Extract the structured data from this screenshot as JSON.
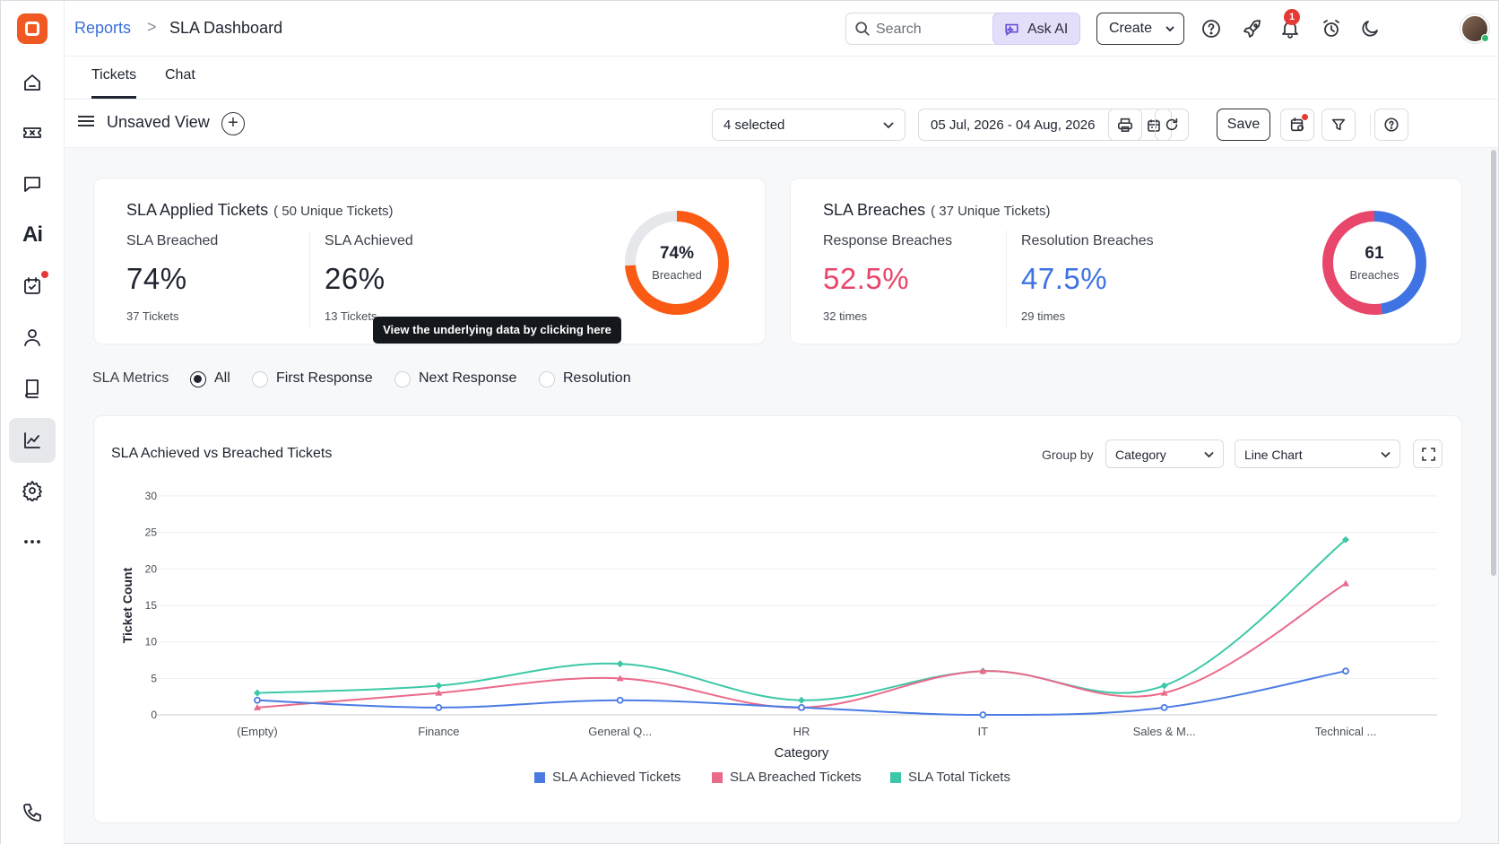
{
  "header": {
    "breadcrumb_parent": "Reports",
    "breadcrumb_sep": ">",
    "breadcrumb_current": "SLA Dashboard",
    "search_placeholder": "Search",
    "search_shortcut": "/",
    "ask_ai_label": "Ask AI",
    "create_label": "Create",
    "notification_count": "1"
  },
  "tabs": [
    {
      "label": "Tickets",
      "active": true
    },
    {
      "label": "Chat",
      "active": false
    }
  ],
  "view_bar": {
    "view_name": "Unsaved View",
    "add_symbol": "+",
    "filter_select": "4 selected",
    "date_range": "05 Jul, 2026 - 04 Aug, 2026",
    "save_label": "Save"
  },
  "sla_applied": {
    "title": "SLA Applied Tickets",
    "subtitle": "( 50 Unique Tickets)",
    "breached_label": "SLA Breached",
    "breached_value": "74%",
    "breached_foot": "37 Tickets",
    "achieved_label": "SLA Achieved",
    "achieved_value": "26%",
    "achieved_foot": "13 Tickets",
    "donut_value": "74%",
    "donut_label": "Breached",
    "donut_fraction": 0.74,
    "donut_color": "#fa5a14"
  },
  "sla_breaches": {
    "title": "SLA Breaches",
    "subtitle": "( 37 Unique Tickets)",
    "response_label": "Response Breaches",
    "response_value": "52.5%",
    "response_foot": "32 times",
    "resolution_label": "Resolution Breaches",
    "resolution_value": "47.5%",
    "resolution_foot": "29 times",
    "donut_value": "61",
    "donut_label": "Breaches",
    "response_fraction": 0.525,
    "response_color": "#e8466a",
    "resolution_color": "#3f73e3"
  },
  "tooltip": "View the underlying data by clicking here",
  "metrics": {
    "label": "SLA Metrics",
    "options": [
      {
        "label": "All",
        "selected": true
      },
      {
        "label": "First Response",
        "selected": false
      },
      {
        "label": "Next Response",
        "selected": false
      },
      {
        "label": "Resolution",
        "selected": false
      }
    ]
  },
  "chart_controls": {
    "title": "SLA Achieved vs Breached Tickets",
    "group_by_label": "Group by",
    "group_by_value": "Category",
    "chart_type_value": "Line Chart"
  },
  "chart_data": {
    "type": "line",
    "title": "SLA Achieved vs Breached Tickets",
    "xlabel": "Category",
    "ylabel": "Ticket Count",
    "categories": [
      "(Empty)",
      "Finance",
      "General Q...",
      "HR",
      "IT",
      "Sales & M...",
      "Technical ..."
    ],
    "ylim": [
      0,
      30
    ],
    "yticks": [
      0,
      5,
      10,
      15,
      20,
      25,
      30
    ],
    "grid": true,
    "legend_position": "bottom",
    "series": [
      {
        "name": "SLA Achieved Tickets",
        "color": "#4a7be3",
        "values": [
          2,
          1,
          2,
          1,
          0,
          1,
          6
        ]
      },
      {
        "name": "SLA Breached Tickets",
        "color": "#ea6a8a",
        "values": [
          1,
          3,
          5,
          1,
          6,
          3,
          18
        ]
      },
      {
        "name": "SLA Total Tickets",
        "color": "#3cc8a8",
        "values": [
          3,
          4,
          7,
          2,
          6,
          4,
          24
        ]
      }
    ]
  }
}
